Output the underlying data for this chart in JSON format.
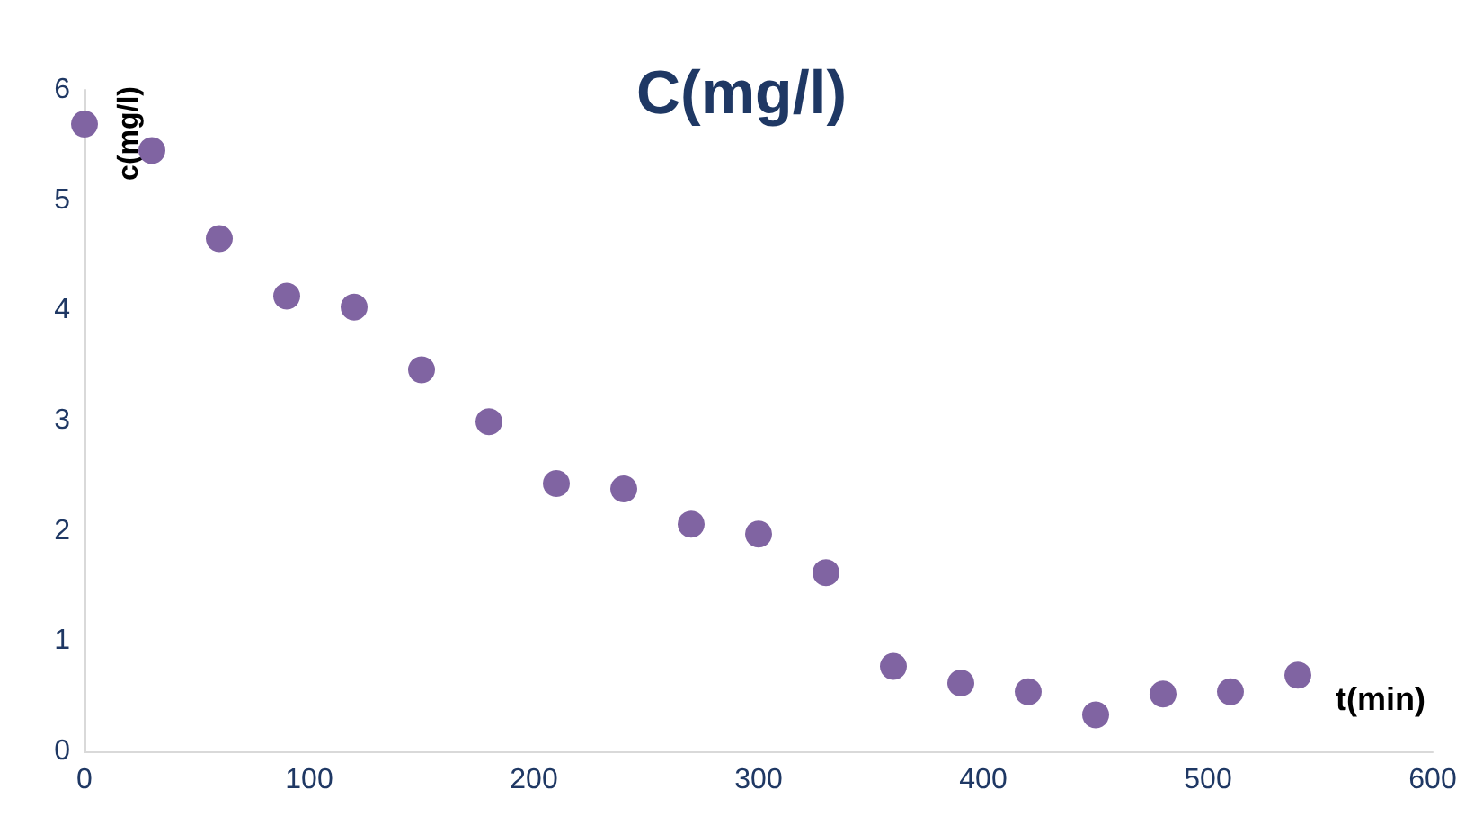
{
  "chart_data": {
    "type": "scatter",
    "title": "C(mg/l)",
    "xlabel": "t(min)",
    "ylabel": "c(mg/l)",
    "x": [
      0,
      30,
      60,
      90,
      120,
      150,
      180,
      210,
      240,
      270,
      300,
      330,
      360,
      390,
      420,
      450,
      480,
      510,
      540
    ],
    "series": [
      {
        "color": "#8064a2",
        "values": [
          5.69,
          5.45,
          4.65,
          4.13,
          4.03,
          3.46,
          2.99,
          2.43,
          2.38,
          2.06,
          1.97,
          1.62,
          0.77,
          0.62,
          0.54,
          0.33,
          0.52,
          0.54,
          0.69
        ]
      }
    ],
    "xlim": [
      0,
      600
    ],
    "xticks": [
      0,
      100,
      200,
      300,
      400,
      500,
      600
    ],
    "ylim": [
      0,
      6
    ],
    "yticks": [
      0,
      1,
      2,
      3,
      4,
      5,
      6
    ],
    "grid": false,
    "marker": "circle"
  }
}
